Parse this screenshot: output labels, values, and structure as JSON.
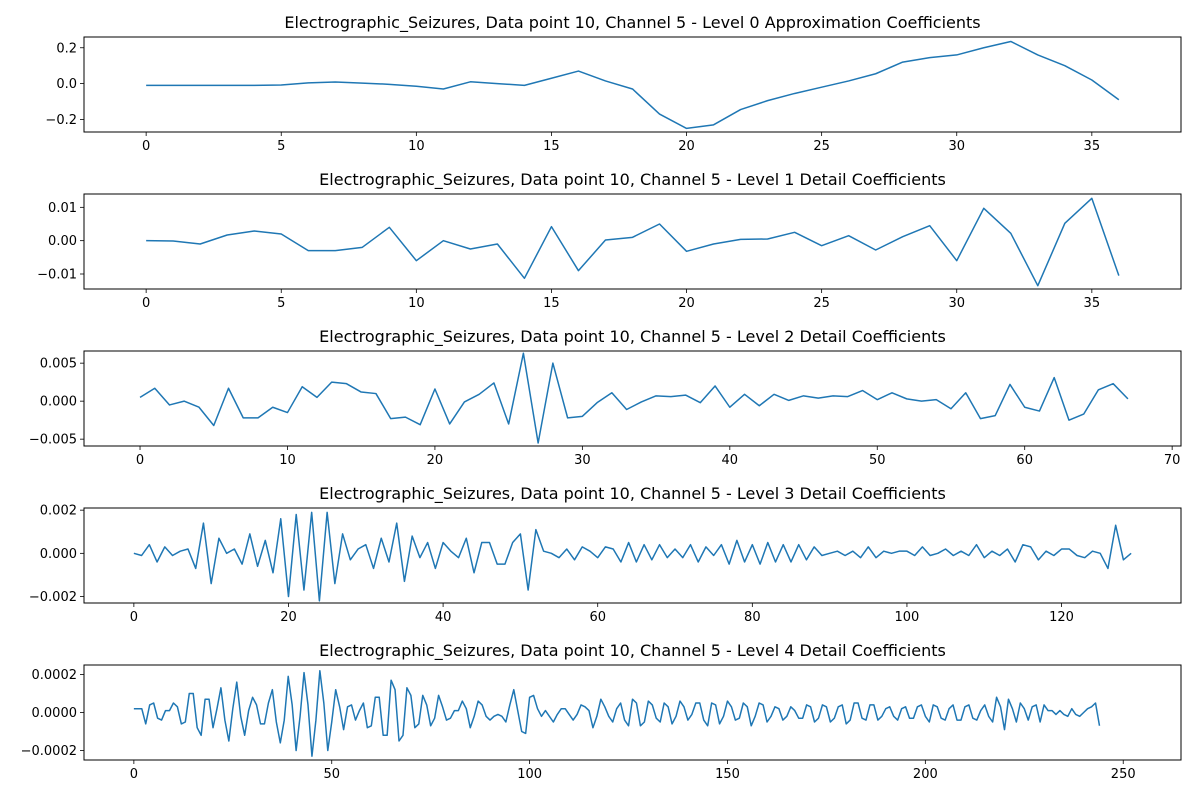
{
  "chart_data": [
    {
      "type": "line",
      "title": "Electrographic_Seizures, Data point 10, Channel 5 - Level 0 Approximation Coefficients",
      "xlim": [
        -2.3,
        38.3
      ],
      "ylim": [
        -0.27,
        0.26
      ],
      "x_ticks": [
        0,
        5,
        10,
        15,
        20,
        25,
        30,
        35
      ],
      "y_ticks": [
        -0.2,
        0.0,
        0.2
      ],
      "y_tick_labels": [
        "−0.2",
        "0.0",
        "0.2"
      ],
      "grid": false,
      "series": [
        {
          "color": "#1f77b4",
          "values": [
            -0.01,
            -0.01,
            -0.01,
            -0.01,
            -0.01,
            -0.008,
            0.004,
            0.009,
            0.003,
            -0.004,
            -0.015,
            -0.03,
            0.01,
            0.0,
            -0.01,
            0.03,
            0.07,
            0.015,
            -0.03,
            -0.17,
            -0.25,
            -0.23,
            -0.145,
            -0.095,
            -0.055,
            -0.02,
            0.015,
            0.055,
            0.12,
            0.145,
            0.16,
            0.2,
            0.235,
            0.16,
            0.1,
            0.02,
            -0.09
          ]
        }
      ]
    },
    {
      "type": "line",
      "title": "Electrographic_Seizures, Data point 10, Channel 5 - Level 1 Detail Coefficients",
      "xlim": [
        -2.3,
        38.3
      ],
      "ylim": [
        -0.0145,
        0.014
      ],
      "x_ticks": [
        0,
        5,
        10,
        15,
        20,
        25,
        30,
        35
      ],
      "y_ticks": [
        -0.01,
        0.0,
        0.01
      ],
      "y_tick_labels": [
        "−0.01",
        "0.00",
        "0.01"
      ],
      "grid": false,
      "series": [
        {
          "color": "#1f77b4",
          "values": [
            0.0,
            -0.0001,
            -0.001,
            0.0017,
            0.0029,
            0.002,
            -0.003,
            -0.003,
            -0.002,
            0.004,
            -0.006,
            0.0,
            -0.0025,
            -0.001,
            -0.0113,
            0.0042,
            -0.009,
            0.0002,
            0.001,
            0.005,
            -0.0032,
            -0.001,
            0.0004,
            0.0005,
            0.0025,
            -0.0015,
            0.0015,
            -0.0028,
            0.0012,
            0.0045,
            -0.006,
            0.0097,
            0.0022,
            -0.0135,
            0.0052,
            0.0127,
            -0.0105
          ]
        }
      ]
    },
    {
      "type": "line",
      "title": "Electrographic_Seizures, Data point 10, Channel 5 - Level 2 Detail Coefficients",
      "xlim": [
        -3.8,
        70.6
      ],
      "ylim": [
        -0.0059,
        0.0066
      ],
      "x_ticks": [
        0,
        10,
        20,
        30,
        40,
        50,
        60,
        70
      ],
      "y_ticks": [
        -0.005,
        0.0,
        0.005
      ],
      "y_tick_labels": [
        "−0.005",
        "0.000",
        "0.005"
      ],
      "grid": false,
      "series": [
        {
          "color": "#1f77b4",
          "values": [
            0.0005,
            0.0017,
            -0.0005,
            0.0,
            -0.0008,
            -0.0032,
            0.0017,
            -0.0022,
            -0.0022,
            -0.0008,
            -0.0015,
            0.0019,
            0.0005,
            0.0025,
            0.0023,
            0.0012,
            0.001,
            -0.0023,
            -0.0021,
            -0.0031,
            0.0016,
            -0.003,
            -0.0001,
            0.0009,
            0.0024,
            -0.003,
            0.0063,
            -0.0055,
            0.005,
            -0.0022,
            -0.002,
            -0.0002,
            0.0011,
            -0.0011,
            -0.0001,
            0.0007,
            0.0006,
            0.0008,
            -0.0002,
            0.002,
            -0.0008,
            0.0009,
            -0.0006,
            0.0009,
            0.0001,
            0.0007,
            0.0004,
            0.0007,
            0.0006,
            0.0014,
            0.0002,
            0.0011,
            0.0003,
            0.0,
            0.0002,
            -0.001,
            0.0011,
            -0.0023,
            -0.0019,
            0.0022,
            -0.0008,
            -0.0013,
            0.0031,
            -0.0025,
            -0.0017,
            0.0015,
            0.0023,
            0.0003
          ]
        }
      ]
    },
    {
      "type": "line",
      "title": "Electrographic_Seizures, Data point 10, Channel 5 - Level 3 Detail Coefficients",
      "xlim": [
        -6.45,
        135.45
      ],
      "ylim": [
        -0.0023,
        0.0021
      ],
      "x_ticks": [
        0,
        20,
        40,
        60,
        80,
        100,
        120
      ],
      "y_ticks": [
        -0.002,
        0.0,
        0.002
      ],
      "y_tick_labels": [
        "−0.002",
        "0.000",
        "0.002"
      ],
      "grid": false,
      "series": [
        {
          "color": "#1f77b4",
          "values": [
            0.0,
            -0.0001,
            0.0004,
            -0.0004,
            0.0003,
            -0.0001,
            0.0001,
            0.0002,
            -0.0007,
            0.0014,
            -0.0014,
            0.0007,
            0.0,
            0.0002,
            -0.0005,
            0.0009,
            -0.0006,
            0.0006,
            -0.0009,
            0.0016,
            -0.002,
            0.0018,
            -0.0017,
            0.0019,
            -0.0022,
            0.0019,
            -0.0014,
            0.0009,
            -0.0003,
            0.0002,
            0.0004,
            -0.0007,
            0.0007,
            -0.0004,
            0.0014,
            -0.0013,
            0.0008,
            -0.0002,
            0.0005,
            -0.0007,
            0.0005,
            0.0001,
            -0.0002,
            0.0007,
            -0.0009,
            0.0005,
            0.0005,
            -0.0005,
            -0.0005,
            0.0005,
            0.0009,
            -0.0017,
            0.0011,
            0.0001,
            0.0,
            -0.0002,
            0.0002,
            -0.0003,
            0.0003,
            0.0001,
            -0.0002,
            0.0003,
            0.0002,
            -0.0004,
            0.0005,
            -0.0004,
            0.0004,
            -0.0003,
            0.0004,
            -0.0002,
            0.0002,
            -0.0002,
            0.0004,
            -0.0004,
            0.0003,
            -0.0001,
            0.0004,
            -0.0005,
            0.0006,
            -0.0004,
            0.0004,
            -0.0005,
            0.0005,
            -0.0004,
            0.0004,
            -0.0004,
            0.0004,
            -0.0003,
            0.0003,
            -0.0001,
            0.0,
            0.0001,
            -0.0001,
            0.0001,
            -0.0002,
            0.0003,
            -0.0002,
            0.0001,
            0.0,
            0.0001,
            0.0001,
            -0.0001,
            0.0003,
            -0.0001,
            0.0,
            0.0002,
            -0.0001,
            0.0001,
            -0.0001,
            0.0004,
            -0.0002,
            0.0001,
            -0.0001,
            0.0002,
            -0.0004,
            0.0004,
            0.0003,
            -0.0003,
            0.0001,
            -0.0001,
            0.0002,
            0.0002,
            -0.0001,
            -0.0002,
            0.0001,
            0.0,
            -0.0007,
            0.0013,
            -0.0003,
            0.0
          ]
        }
      ]
    },
    {
      "type": "line",
      "title": "Electrographic_Seizures, Data point 10, Channel 5 - Level 4 Detail Coefficients",
      "xlim": [
        -12.6,
        264.6
      ],
      "ylim": [
        -0.00025,
        0.00025
      ],
      "x_ticks": [
        0,
        50,
        100,
        150,
        200,
        250
      ],
      "y_ticks": [
        -0.0002,
        0.0,
        0.0002
      ],
      "y_tick_labels": [
        "−0.0002",
        "0.0000",
        "0.0002"
      ],
      "grid": false,
      "series": [
        {
          "color": "#1f77b4",
          "values": [
            2e-05,
            2e-05,
            2e-05,
            -6e-05,
            4e-05,
            5e-05,
            -3e-05,
            -4e-05,
            1e-05,
            1e-05,
            5e-05,
            3e-05,
            -6e-05,
            -5e-05,
            0.0001,
            0.0001,
            -8e-05,
            -0.00012,
            7e-05,
            7e-05,
            -8e-05,
            2e-05,
            0.00013,
            -4e-05,
            -0.00015,
            2e-05,
            0.00016,
            -2e-05,
            -0.00012,
            1e-05,
            8e-05,
            4e-05,
            -6e-05,
            -6e-05,
            5e-05,
            0.00012,
            -5e-05,
            -0.00016,
            -4e-05,
            0.00019,
            4e-05,
            -0.0002,
            -2e-05,
            0.00021,
            4e-05,
            -0.00023,
            -4e-05,
            0.00022,
            5e-05,
            -0.0002,
            -5e-05,
            0.00012,
            3e-05,
            -9e-05,
            3e-05,
            4e-05,
            -4e-05,
            1e-05,
            5e-05,
            -8e-05,
            -7e-05,
            8e-05,
            8e-05,
            -0.00012,
            -0.00012,
            0.00017,
            0.00012,
            -0.00015,
            -0.00012,
            0.00013,
            9e-05,
            -8e-05,
            -6e-05,
            9e-05,
            4e-05,
            -7e-05,
            -3e-05,
            9e-05,
            3e-05,
            -4e-05,
            -3e-05,
            1e-05,
            1e-05,
            6e-05,
            2e-05,
            -8e-05,
            -2e-05,
            6e-05,
            4e-05,
            -2e-05,
            -4e-05,
            -2e-05,
            -1e-05,
            -2e-05,
            -5e-05,
            4e-05,
            0.00012,
            1e-05,
            -0.0001,
            -0.00011,
            8e-05,
            9e-05,
            2e-05,
            -2e-05,
            1e-05,
            -2e-05,
            -5e-05,
            -1e-05,
            2e-05,
            2e-05,
            -1e-05,
            -4e-05,
            -1e-05,
            4e-05,
            3e-05,
            1e-05,
            -8e-05,
            -2e-05,
            7e-05,
            3e-05,
            -2e-05,
            -5e-05,
            2e-05,
            5e-05,
            -4e-05,
            -7e-05,
            7e-05,
            5e-05,
            -7e-05,
            -5e-05,
            6e-05,
            4e-05,
            -3e-05,
            -5e-05,
            5e-05,
            3e-05,
            -6e-05,
            -2e-05,
            6e-05,
            3e-05,
            -4e-05,
            -1e-05,
            5e-05,
            5e-05,
            -4e-05,
            -7e-05,
            5e-05,
            4e-05,
            -6e-05,
            -2e-05,
            6e-05,
            3e-05,
            -4e-05,
            -3e-05,
            5e-05,
            3e-05,
            -7e-05,
            -2e-05,
            5e-05,
            4e-05,
            -5e-05,
            -2e-05,
            3e-05,
            2e-05,
            -4e-05,
            -2e-05,
            3e-05,
            1e-05,
            -3e-05,
            -3e-05,
            4e-05,
            3e-05,
            -5e-05,
            -3e-05,
            4e-05,
            3e-05,
            -5e-05,
            -3e-05,
            3e-05,
            4e-05,
            -6e-05,
            -4e-05,
            5e-05,
            5e-05,
            -3e-05,
            -4e-05,
            4e-05,
            4e-05,
            -4e-05,
            -2e-05,
            2e-05,
            3e-05,
            -2e-05,
            -4e-05,
            2e-05,
            3e-05,
            -3e-05,
            -3e-05,
            3e-05,
            4e-05,
            -2e-05,
            -5e-05,
            4e-05,
            3e-05,
            -3e-05,
            -4e-05,
            2e-05,
            4e-05,
            -4e-05,
            -4e-05,
            3e-05,
            4e-05,
            -3e-05,
            -4e-05,
            1e-05,
            4e-05,
            -2e-05,
            -5e-05,
            8e-05,
            3e-05,
            -9e-05,
            7e-05,
            2e-05,
            -5e-05,
            5e-05,
            2e-05,
            -4e-05,
            3e-05,
            4e-05,
            -5e-05,
            4e-05,
            1e-05,
            1e-05,
            -1e-05,
            1e-05,
            -1e-05,
            -2e-05,
            2e-05,
            -1e-05,
            -2e-05,
            0.0,
            2e-05,
            3e-05,
            5e-05,
            -7e-05
          ]
        }
      ]
    }
  ]
}
